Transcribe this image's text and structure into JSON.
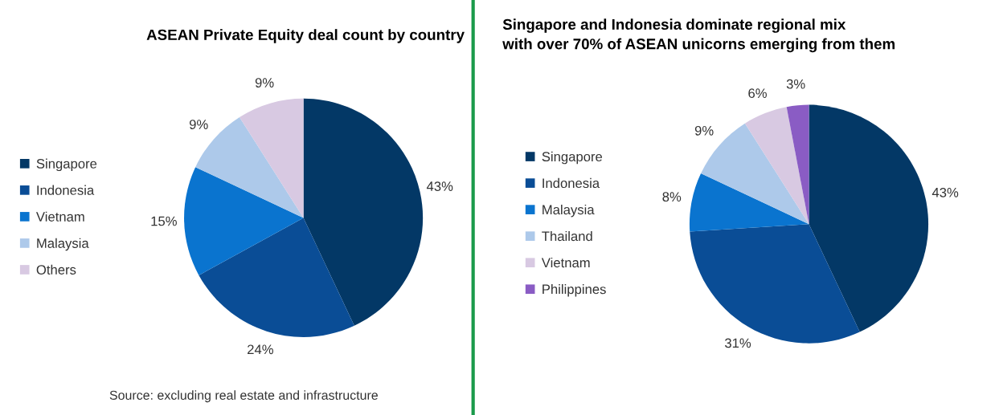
{
  "chart_data": [
    {
      "type": "pie",
      "title": "ASEAN Private Equity deal count by country",
      "categories": [
        "Singapore",
        "Indonesia",
        "Vietnam",
        "Malaysia",
        "Others"
      ],
      "values": [
        43,
        24,
        15,
        9,
        9
      ],
      "colors": [
        "#033866",
        "#0a4d96",
        "#0a74cf",
        "#adc9ea",
        "#d8c9e2"
      ],
      "value_labels": [
        "43%",
        "24%",
        "15%",
        "9%",
        "9%"
      ],
      "legend": "left",
      "annotations": [
        "Source: excluding real estate and infrastructure"
      ]
    },
    {
      "type": "pie",
      "title": "Singapore and Indonesia dominate regional mix\nwith over 70% of ASEAN unicorns emerging from them",
      "categories": [
        "Singapore",
        "Indonesia",
        "Malaysia",
        "Thailand",
        "Vietnam",
        "Philippines"
      ],
      "values": [
        43,
        31,
        8,
        9,
        6,
        3
      ],
      "colors": [
        "#033866",
        "#0a4d96",
        "#0a74cf",
        "#adc9ea",
        "#d8c9e2",
        "#8a5cc4"
      ],
      "value_labels": [
        "43%",
        "31%",
        "8%",
        "9%",
        "6%",
        "3%"
      ],
      "legend": "left"
    }
  ]
}
